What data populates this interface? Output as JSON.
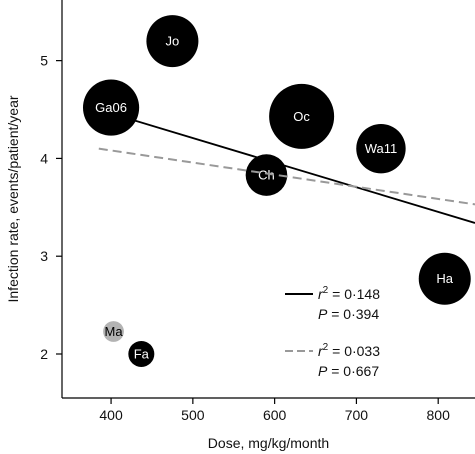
{
  "chart_data": {
    "type": "scatter",
    "xlabel": "Dose, mg/kg/month",
    "ylabel": "Infection rate, events/patient/year",
    "xlim": [
      340,
      845
    ],
    "ylim": [
      1.55,
      5.62
    ],
    "x_ticks": [
      400,
      500,
      600,
      700,
      800
    ],
    "y_ticks": [
      2,
      3,
      4,
      5
    ],
    "grid": false,
    "points": [
      {
        "label": "Jo",
        "x": 475,
        "y": 5.2,
        "size": 1.0,
        "color": "#000000"
      },
      {
        "label": "Ga06",
        "x": 400,
        "y": 4.52,
        "size": 1.08,
        "color": "#000000"
      },
      {
        "label": "Oc",
        "x": 633,
        "y": 4.43,
        "size": 1.25,
        "color": "#000000"
      },
      {
        "label": "Wa11",
        "x": 730,
        "y": 4.1,
        "size": 0.95,
        "color": "#000000"
      },
      {
        "label": "Ch",
        "x": 590,
        "y": 3.83,
        "size": 0.8,
        "color": "#000000"
      },
      {
        "label": "Ha",
        "x": 808,
        "y": 2.77,
        "size": 1.0,
        "color": "#000000"
      },
      {
        "label": "Fa",
        "x": 437,
        "y": 2.0,
        "size": 0.5,
        "color": "#000000"
      },
      {
        "label": "Ma",
        "x": 403,
        "y": 2.23,
        "size": 0.4,
        "color": "#b3b3b3"
      }
    ],
    "fit_lines": [
      {
        "x": [
          400,
          845
        ],
        "y": [
          4.46,
          3.34
        ],
        "style": "solid",
        "color": "#000000"
      },
      {
        "x": [
          385,
          845
        ],
        "y": [
          4.1,
          3.53
        ],
        "style": "dashed",
        "color": "#999999"
      }
    ],
    "legend": [
      {
        "style": "solid",
        "color": "#000000",
        "r2": "0·148",
        "p": "0·394"
      },
      {
        "style": "dashed",
        "color": "#999999",
        "r2": "0·033",
        "p": "0·667"
      }
    ],
    "legend_placement": "bottom-right"
  }
}
